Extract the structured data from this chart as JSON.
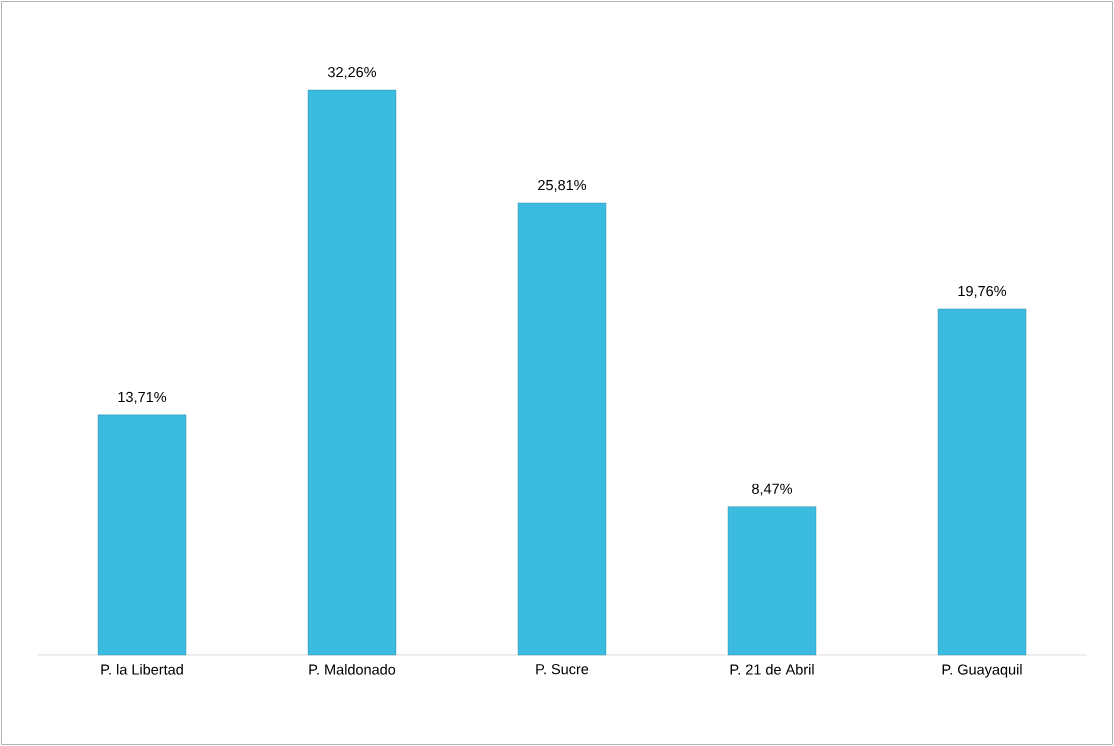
{
  "chart_data": {
    "type": "bar",
    "categories": [
      "P. la Libertad",
      "P. Maldonado",
      "P. Sucre",
      "P. 21 de Abril",
      "P. Guayaquil"
    ],
    "values": [
      13.71,
      32.26,
      25.81,
      8.47,
      19.76
    ],
    "value_labels": [
      "13,71%",
      "32,26%",
      "25,81%",
      "8,47%",
      "19,76%"
    ],
    "color": "#3bbbe0"
  }
}
